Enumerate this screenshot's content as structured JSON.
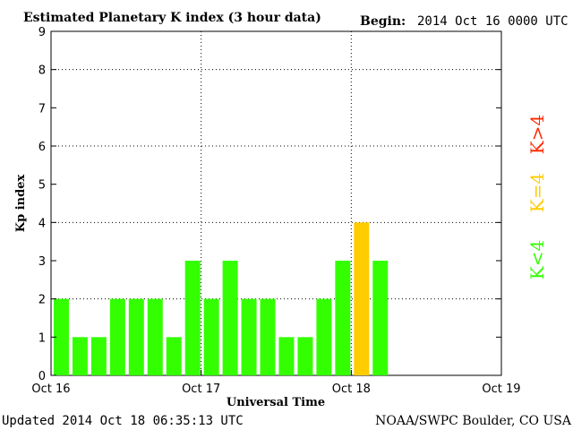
{
  "header": {
    "title": "Estimated Planetary K index (3 hour data)",
    "begin_label": "Begin:",
    "begin_value": "2014 Oct 16 0000 UTC"
  },
  "footer": {
    "updated": "Updated 2014 Oct 18 06:35:13 UTC",
    "credit": "NOAA/SWPC Boulder, CO USA"
  },
  "legend": [
    {
      "label": "K>4",
      "color": "#ff2a00"
    },
    {
      "label": "K=4",
      "color": "#ffcc00"
    },
    {
      "label": "K<4",
      "color": "#33ff00"
    }
  ],
  "colors": {
    "below4": "#33ff00",
    "equal4": "#ffcc00",
    "above4": "#ff2a00",
    "bar_outline": "#ffffff",
    "grid": "#000000"
  },
  "chart_data": {
    "type": "bar",
    "title": "Estimated Planetary K index (3 hour data)",
    "xlabel": "Universal Time",
    "ylabel": "Kp index",
    "ylim": [
      0,
      9
    ],
    "yticks": [
      "0",
      "1",
      "2",
      "3",
      "4",
      "5",
      "6",
      "7",
      "8",
      "9"
    ],
    "xticks": [
      "Oct 16",
      "Oct 17",
      "Oct 18",
      "Oct 19"
    ],
    "x_interval_hours": 3,
    "x_range_days": 3,
    "grid": "dotted at y=4,6,8 and x=Oct 17,Oct 18",
    "values": [
      2,
      1,
      1,
      2,
      2,
      2,
      1,
      3,
      2,
      3,
      2,
      2,
      1,
      1,
      2,
      3,
      4,
      3
    ]
  }
}
